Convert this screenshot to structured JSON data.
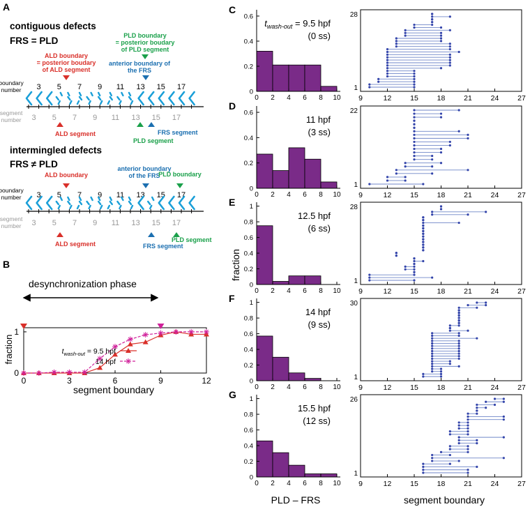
{
  "colors": {
    "cyan": "#1a9fd8",
    "red": "#d9302a",
    "green": "#1aa04a",
    "blue_text": "#1b6fb0",
    "magenta": "#d0209a",
    "purple": "#7a2b88",
    "dot_blue": "#3344aa",
    "line_blue": "#6f86c8",
    "gray": "#999999"
  },
  "panel_a": {
    "letter": "A",
    "top": {
      "title": "contiguous defects",
      "relation": "FRS = PLD",
      "ald_boundary_lines": [
        "ALD boundary",
        "= posterior boudary",
        "of ALD segment"
      ],
      "pld_boundary_lines": [
        "PLD boundary",
        "= posterior boudary",
        "of PLD segment"
      ],
      "frs_boundary_lines": [
        "anterior boundary of",
        "the FRS"
      ],
      "ald_segment": "ALD  segment",
      "frs_segment": "FRS  segment",
      "pld_segment": "PLD  segment"
    },
    "bottom": {
      "title": "intermingled defects",
      "relation": "FRS ≠ PLD",
      "ald_boundary_lines": [
        "ALD boundary"
      ],
      "frs_boundary_lines": [
        "anterior boundary",
        "of the FRS"
      ],
      "pld_boundary_lines": [
        "PLD boundary"
      ],
      "ald_segment": "ALD  segment",
      "frs_segment": "FRS  segment",
      "pld_segment": "PLD  segment"
    },
    "boundary_label_lines": [
      "boundary",
      "number"
    ],
    "segment_label_lines": [
      "segment",
      "number"
    ],
    "boundary_numbers": [
      "3",
      "5",
      "7",
      "9",
      "11",
      "13",
      "15",
      "17"
    ],
    "segment_numbers": [
      "3",
      "5",
      "7",
      "9",
      "11",
      "13",
      "15",
      "17"
    ]
  },
  "chart_data": [
    {
      "panel": "B",
      "type": "line",
      "title": "desynchronization phase",
      "xlabel": "segment boundary",
      "ylabel": "fraction",
      "xlim": [
        0,
        12
      ],
      "ylim": [
        0,
        1.1
      ],
      "xticks": [
        0,
        3,
        6,
        9,
        12
      ],
      "yticks": [
        0,
        1
      ],
      "x": [
        0,
        1,
        2,
        3,
        4,
        5,
        6,
        7,
        8,
        9,
        10,
        11,
        12
      ],
      "series": [
        {
          "name": "t_wash-out = 9.5 hpf",
          "values": [
            0,
            0,
            0,
            0,
            0,
            0.13,
            0.45,
            0.7,
            0.75,
            0.92,
            1.0,
            0.94,
            0.94
          ],
          "color": "#d9302a",
          "marker": "triangle",
          "dash": false
        },
        {
          "name": "14 hpf",
          "values": [
            0,
            0,
            0.02,
            0.02,
            0.02,
            0.35,
            0.64,
            0.82,
            0.93,
            0.97,
            1.0,
            1.0,
            1.0
          ],
          "color": "#d0209a",
          "marker": "asterisk",
          "dash": true
        }
      ],
      "legend_first_prefix": "t",
      "legend_first_sub": "wash-out",
      "legend_first_suffix": " = 9.5 hpf",
      "legend_second": "14 hpf",
      "legend_position": "lower-right",
      "phase_start": 0,
      "phase_end": 9
    },
    {
      "panel": "C-G",
      "type": "bar",
      "xlabel": "PLD – FRS",
      "ylabel": "fraction",
      "bin_edges": [
        0,
        2,
        4,
        6,
        8,
        10
      ],
      "xticks": [
        0,
        2,
        4,
        6,
        8,
        10
      ],
      "panels": [
        {
          "letter": "C",
          "time_prefix": "t",
          "time_sub": "wash-out",
          "time": " = 9.5 hpf",
          "stage": "(0 ss)",
          "values": [
            0.32,
            0.21,
            0.21,
            0.21,
            0.04
          ],
          "ylim": [
            0,
            0.65
          ],
          "yticks": [
            "0",
            "0.2",
            "0.4",
            "0.6"
          ]
        },
        {
          "letter": "D",
          "time": "11 hpf",
          "stage": "(3 ss)",
          "values": [
            0.27,
            0.14,
            0.32,
            0.23,
            0.05
          ],
          "ylim": [
            0,
            0.65
          ],
          "yticks": [
            "0",
            "0.2",
            "0.4",
            "0.6"
          ]
        },
        {
          "letter": "E",
          "time": "12.5 hpf",
          "stage": "(6 ss)",
          "values": [
            0.75,
            0.04,
            0.11,
            0.11,
            0
          ],
          "ylim": [
            0,
            1.05
          ],
          "yticks": [
            "0",
            "0.2",
            "0.4",
            "0.6",
            "0.8",
            "1"
          ]
        },
        {
          "letter": "F",
          "time": "14 hpf",
          "stage": "(9 ss)",
          "values": [
            0.57,
            0.3,
            0.1,
            0.03,
            0
          ],
          "ylim": [
            0,
            1.05
          ],
          "yticks": [
            "0",
            "0.2",
            "0.4",
            "0.6",
            "0.8",
            "1"
          ]
        },
        {
          "letter": "G",
          "time": "15.5 hpf",
          "stage": "(12 ss)",
          "values": [
            0.46,
            0.31,
            0.15,
            0.04,
            0.04
          ],
          "ylim": [
            0,
            1.05
          ],
          "yticks": [
            "0",
            "0.2",
            "0.4",
            "0.6",
            "0.8",
            "1"
          ]
        }
      ]
    },
    {
      "panel": "C-G right",
      "type": "scatter",
      "xlabel": "segment boundary",
      "xlim": [
        9,
        27
      ],
      "xticks": [
        9,
        12,
        15,
        18,
        21,
        24,
        27
      ],
      "panels": [
        {
          "ymax": 28,
          "ytick_labels": [
            "1",
            "28"
          ],
          "rows": [
            [
              10,
              15
            ],
            [
              10,
              15
            ],
            [
              11,
              15
            ],
            [
              11,
              15
            ],
            [
              12,
              15
            ],
            [
              12,
              15
            ],
            [
              12,
              15
            ],
            [
              12,
              18
            ],
            [
              12,
              19
            ],
            [
              12,
              19
            ],
            [
              12,
              19
            ],
            [
              12,
              19
            ],
            [
              12,
              19
            ],
            [
              12,
              20
            ],
            [
              12,
              19
            ],
            [
              13,
              19
            ],
            [
              13,
              19
            ],
            [
              13,
              18
            ],
            [
              13,
              18
            ],
            [
              14,
              18
            ],
            [
              14,
              18
            ],
            [
              14,
              19
            ],
            [
              15,
              18
            ],
            [
              15,
              17
            ],
            [
              17,
              17
            ],
            [
              17,
              17
            ],
            [
              17,
              19
            ],
            [
              17,
              17
            ]
          ]
        },
        {
          "ymax": 22,
          "ytick_labels": [
            "1",
            "22"
          ],
          "rows": [
            [
              10,
              16
            ],
            [
              12,
              14
            ],
            [
              12,
              14
            ],
            [
              13,
              17
            ],
            [
              13,
              21
            ],
            [
              14,
              17
            ],
            [
              14,
              18
            ],
            [
              15,
              17
            ],
            [
              15,
              17
            ],
            [
              15,
              18
            ],
            [
              15,
              18
            ],
            [
              15,
              19
            ],
            [
              15,
              19
            ],
            [
              15,
              21
            ],
            [
              15,
              21
            ],
            [
              15,
              20
            ],
            [
              15,
              15
            ],
            [
              15,
              15
            ],
            [
              15,
              15
            ],
            [
              15,
              18
            ],
            [
              15,
              18
            ],
            [
              15,
              20
            ]
          ]
        },
        {
          "ymax": 28,
          "ytick_labels": [
            "1",
            "28"
          ],
          "rows": [
            [
              10,
              15
            ],
            [
              10,
              17
            ],
            [
              10,
              15
            ],
            [
              15,
              15
            ],
            [
              14,
              15
            ],
            [
              14,
              15
            ],
            [
              15,
              15
            ],
            [
              15,
              16
            ],
            [
              15,
              15
            ],
            [
              13,
              13
            ],
            [
              13,
              13
            ],
            [
              16,
              16
            ],
            [
              16,
              16
            ],
            [
              16,
              16
            ],
            [
              16,
              16
            ],
            [
              16,
              16
            ],
            [
              16,
              16
            ],
            [
              16,
              16
            ],
            [
              16,
              16
            ],
            [
              16,
              16
            ],
            [
              16,
              16
            ],
            [
              16,
              20
            ],
            [
              16,
              16
            ],
            [
              16,
              16
            ],
            [
              17,
              21
            ],
            [
              17,
              23
            ],
            [
              18,
              18
            ],
            [
              18,
              18
            ]
          ]
        },
        {
          "ymax": 30,
          "ytick_labels": [
            "1",
            "30"
          ],
          "rows": [
            [
              16,
              18
            ],
            [
              16,
              18
            ],
            [
              17,
              18
            ],
            [
              17,
              18
            ],
            [
              17,
              20
            ],
            [
              17,
              19
            ],
            [
              17,
              19
            ],
            [
              17,
              20
            ],
            [
              17,
              20
            ],
            [
              17,
              20
            ],
            [
              17,
              20
            ],
            [
              17,
              20
            ],
            [
              17,
              20
            ],
            [
              17,
              20
            ],
            [
              17,
              20
            ],
            [
              17,
              22
            ],
            [
              17,
              20
            ],
            [
              17,
              20
            ],
            [
              19,
              21
            ],
            [
              19,
              19
            ],
            [
              19,
              20
            ],
            [
              20,
              20
            ],
            [
              20,
              20
            ],
            [
              20,
              20
            ],
            [
              20,
              20
            ],
            [
              20,
              20
            ],
            [
              20,
              20
            ],
            [
              20,
              22
            ],
            [
              21,
              23
            ],
            [
              22,
              23
            ]
          ]
        },
        {
          "ymax": 26,
          "ytick_labels": [
            "1",
            "26"
          ],
          "rows": [
            [
              16,
              21
            ],
            [
              16,
              21
            ],
            [
              16,
              22
            ],
            [
              16,
              19
            ],
            [
              17,
              20
            ],
            [
              17,
              25
            ],
            [
              17,
              19
            ],
            [
              18,
              21
            ],
            [
              19,
              21
            ],
            [
              19,
              21
            ],
            [
              20,
              22
            ],
            [
              20,
              22
            ],
            [
              20,
              25
            ],
            [
              19,
              21
            ],
            [
              19,
              21
            ],
            [
              20,
              21
            ],
            [
              20,
              21
            ],
            [
              20,
              21
            ],
            [
              21,
              25
            ],
            [
              21,
              25
            ],
            [
              21,
              22
            ],
            [
              22,
              22
            ],
            [
              22,
              23
            ],
            [
              22,
              24
            ],
            [
              23,
              25
            ],
            [
              24,
              25
            ]
          ]
        }
      ]
    }
  ],
  "panel_letters": {
    "B": "B",
    "C": "C",
    "D": "D",
    "E": "E",
    "F": "F",
    "G": "G"
  }
}
